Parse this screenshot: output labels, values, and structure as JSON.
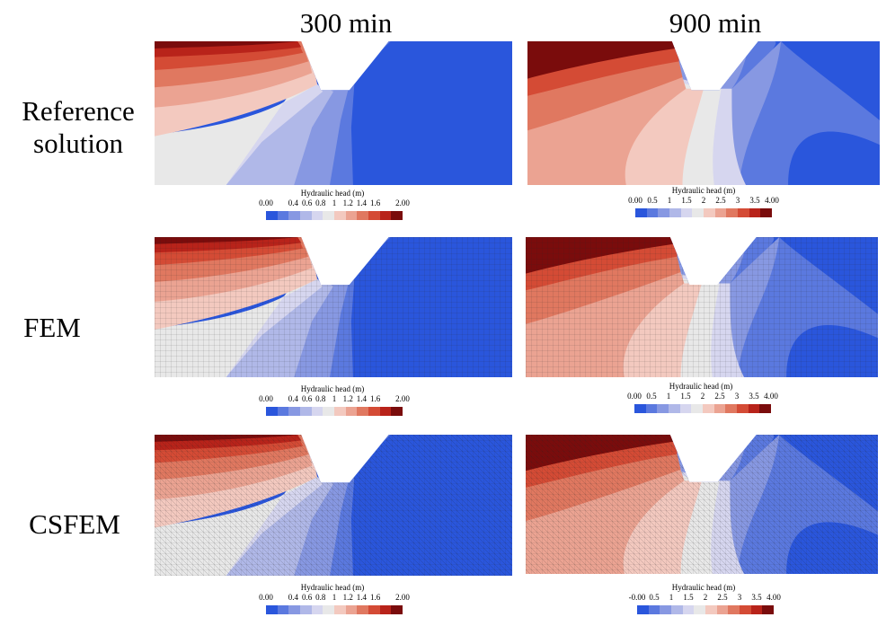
{
  "columns": [
    "300 min",
    "900 min"
  ],
  "rows": [
    {
      "label_lines": [
        "Reference",
        "solution"
      ]
    },
    {
      "label_lines": [
        "FEM"
      ]
    },
    {
      "label_lines": [
        "CSFEM"
      ]
    }
  ],
  "colorbar_title": "Hydraulic head (m)",
  "colorbar_300": {
    "ticks": [
      "0.00",
      "0.4",
      "0.6",
      "0.8",
      "1",
      "1.2",
      "1.4",
      "1.6",
      "2.00"
    ]
  },
  "colorbar_900": {
    "ticks": [
      "0.00",
      "0.5",
      "1",
      "1.5",
      "2",
      "2.5",
      "3",
      "3.5",
      "4.00"
    ]
  },
  "colorbar_900_csfem": {
    "ticks": [
      "-0.00",
      "0.5",
      "1",
      "1.5",
      "2",
      "2.5",
      "3",
      "3.5",
      "4.00"
    ]
  },
  "palette": [
    "#2a56dc",
    "#5b79df",
    "#8798e2",
    "#b0b8e8",
    "#d6d6ef",
    "#e8e8e8",
    "#f3c9bf",
    "#eba392",
    "#e07860",
    "#d44b35",
    "#b8231a",
    "#7a0c0c"
  ]
}
